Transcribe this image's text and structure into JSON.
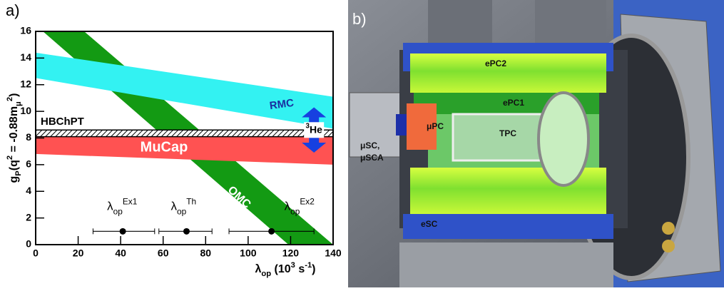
{
  "chart_data": {
    "type": "band",
    "panel_label": "a)",
    "y_label": [
      "g",
      "P",
      "(q",
      "2",
      " = -0.88m",
      "μ",
      "2",
      ")"
    ],
    "x_label": [
      "λ",
      "op",
      " (10",
      "3",
      " s",
      "-1",
      ")"
    ],
    "xlim": [
      0,
      140
    ],
    "xticks": [
      0,
      20,
      40,
      60,
      80,
      100,
      120,
      140
    ],
    "ylim": [
      0,
      16
    ],
    "yticks": [
      0,
      2,
      4,
      6,
      8,
      10,
      12,
      14,
      16
    ],
    "series": [
      {
        "name": "OMC",
        "color": "#139a13",
        "x": [
          3.4,
          22.8,
          140,
          119
        ],
        "values": [
          16,
          16,
          0,
          0
        ]
      },
      {
        "name": "RMC",
        "color": "#33f2f2",
        "x": [
          0,
          140,
          140,
          0
        ],
        "values": [
          14.4,
          11.1,
          8.7,
          12.5
        ]
      },
      {
        "name": "MuCap",
        "color": "#ff5252",
        "x": [
          0,
          140,
          140,
          0
        ],
        "values": [
          8.2,
          8.1,
          6.0,
          6.8
        ]
      },
      {
        "name": "HBChPT",
        "color": "#000000",
        "x": [
          0,
          140,
          140,
          0
        ],
        "values": [
          8.6,
          8.6,
          8.1,
          8.1
        ]
      }
    ],
    "arrow": {
      "label": [
        "3",
        "He"
      ],
      "color": "#1740e0",
      "x": 131,
      "values": [
        6.9,
        10.3
      ]
    },
    "points": [
      {
        "label": [
          "λ",
          "op",
          "Ex1"
        ],
        "x": 41,
        "y": 1,
        "x_range": [
          27,
          56
        ]
      },
      {
        "label": [
          "λ",
          "op",
          "Th"
        ],
        "x": 71,
        "y": 1,
        "x_range": [
          58,
          83
        ]
      },
      {
        "label": [
          "λ",
          "op",
          "Ex2"
        ],
        "x": 111,
        "y": 1,
        "x_range": [
          91,
          131
        ]
      }
    ]
  },
  "panel_b": {
    "label": "b)",
    "labels": [
      "ePC2",
      "ePC1",
      "μPC",
      "TPC",
      "μSC,",
      "μSCA",
      "eSC"
    ]
  }
}
